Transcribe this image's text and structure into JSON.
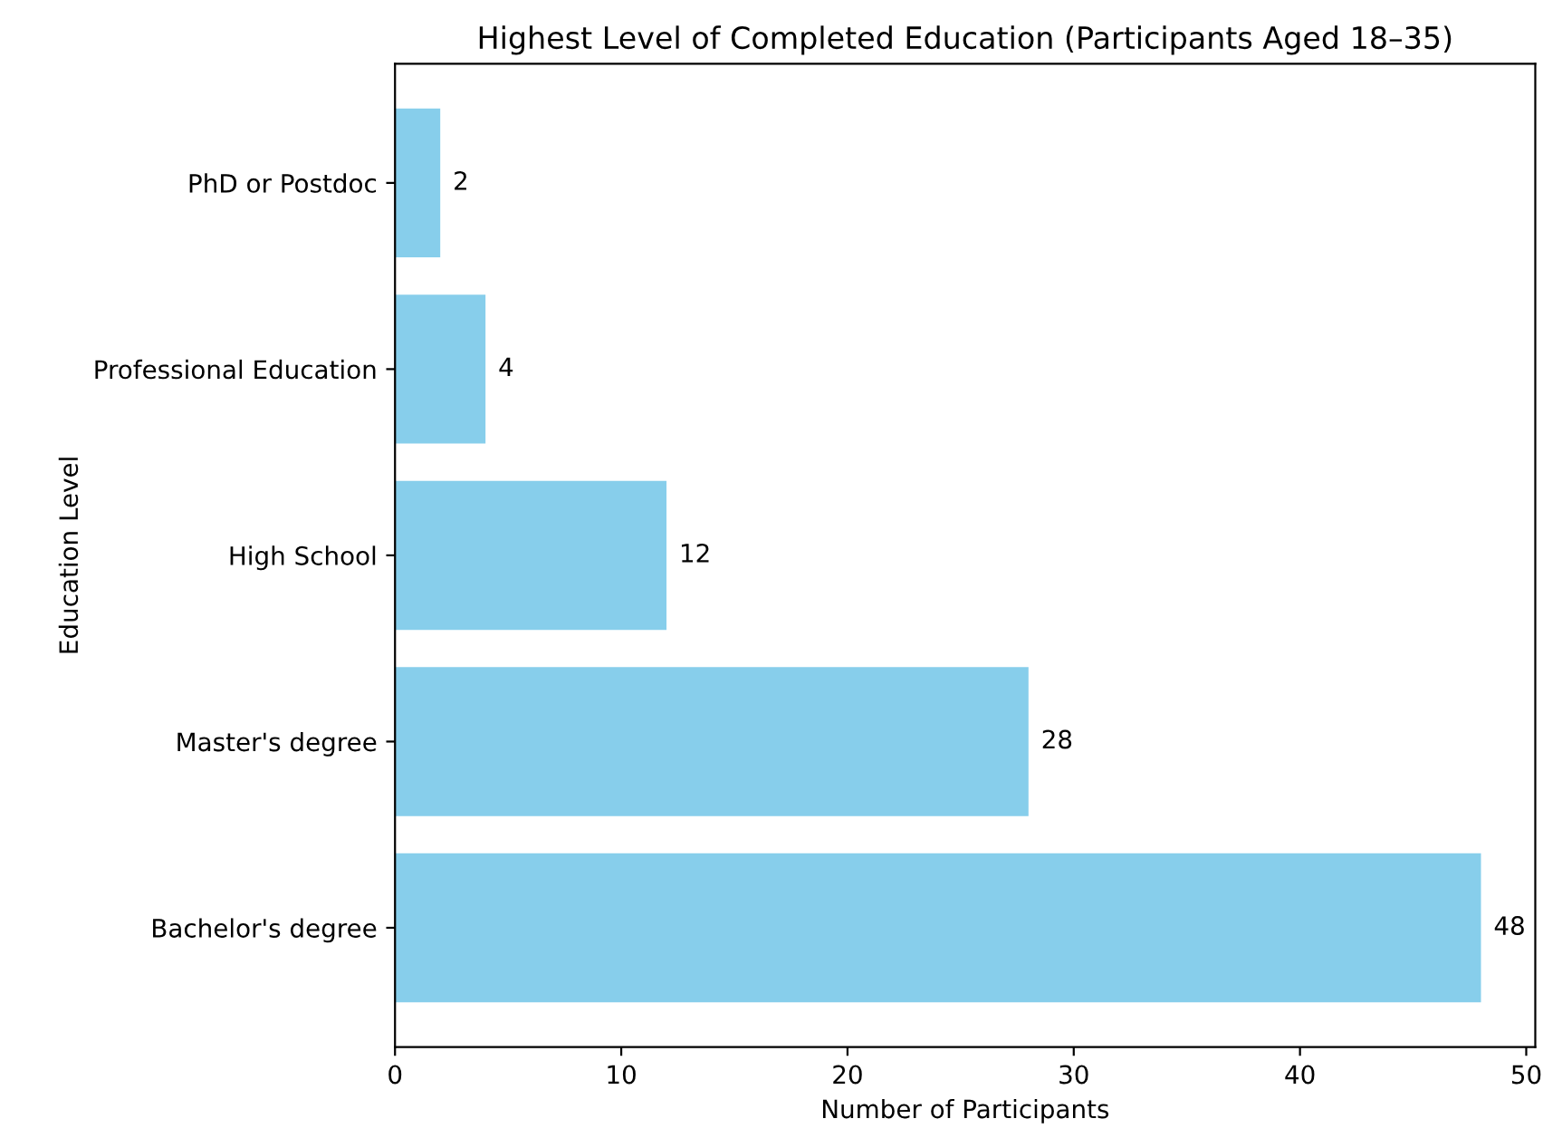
{
  "chart_data": {
    "type": "bar",
    "orientation": "horizontal",
    "title": "Highest Level of Completed Education (Participants Aged 18–35)",
    "xlabel": "Number of Participants",
    "ylabel": "Education Level",
    "categories": [
      "PhD or Postdoc",
      "Professional Education",
      "High School",
      "Master's degree",
      "Bachelor's degree"
    ],
    "values": [
      2,
      4,
      12,
      28,
      48
    ],
    "color": "#87ceeb",
    "xlim": [
      0,
      50.4
    ],
    "xticks": [
      0,
      10,
      20,
      30,
      40,
      50
    ],
    "grid": false,
    "data_labels": true
  }
}
